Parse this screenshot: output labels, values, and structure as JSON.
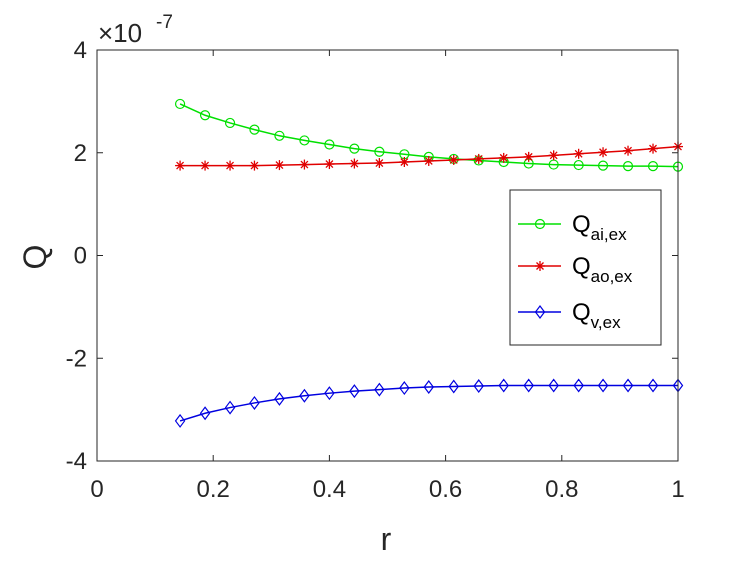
{
  "chart_data": {
    "type": "line",
    "xlabel": "r",
    "ylabel": "Q",
    "xlim": [
      0,
      1
    ],
    "ylim": [
      -4,
      4
    ],
    "y_scale_exponent": "-7",
    "y_scale_prefix": "×10",
    "xticks": [
      0,
      0.2,
      0.4,
      0.6,
      0.8,
      1
    ],
    "xtick_labels": [
      "0",
      "0.2",
      "0.4",
      "0.6",
      "0.8",
      "1"
    ],
    "yticks": [
      -4,
      -2,
      0,
      2,
      4
    ],
    "ytick_labels": [
      "-4",
      "-2",
      "0",
      "2",
      "4"
    ],
    "grid": false,
    "legend_position": "center-right",
    "x": [
      0.143,
      0.186,
      0.229,
      0.271,
      0.314,
      0.357,
      0.4,
      0.443,
      0.486,
      0.529,
      0.571,
      0.614,
      0.657,
      0.7,
      0.743,
      0.786,
      0.829,
      0.871,
      0.914,
      0.957,
      1.0
    ],
    "series": [
      {
        "name": "Q_ai,ex",
        "label_main": "Q",
        "label_sub": "ai,ex",
        "color": "#00e000",
        "marker": "circle",
        "values": [
          2.95,
          2.73,
          2.58,
          2.45,
          2.33,
          2.24,
          2.16,
          2.08,
          2.02,
          1.97,
          1.92,
          1.88,
          1.85,
          1.82,
          1.79,
          1.77,
          1.76,
          1.75,
          1.74,
          1.74,
          1.73
        ]
      },
      {
        "name": "Q_ao,ex",
        "label_main": "Q",
        "label_sub": "ao,ex",
        "color": "#e00000",
        "marker": "asterisk",
        "values": [
          1.75,
          1.75,
          1.75,
          1.75,
          1.76,
          1.77,
          1.78,
          1.79,
          1.8,
          1.82,
          1.84,
          1.86,
          1.88,
          1.9,
          1.92,
          1.95,
          1.98,
          2.01,
          2.04,
          2.08,
          2.12
        ]
      },
      {
        "name": "Q_v,ex",
        "label_main": "Q",
        "label_sub": "v,ex",
        "color": "#0000e0",
        "marker": "diamond",
        "values": [
          -3.22,
          -3.07,
          -2.96,
          -2.87,
          -2.79,
          -2.73,
          -2.68,
          -2.64,
          -2.61,
          -2.58,
          -2.56,
          -2.55,
          -2.54,
          -2.53,
          -2.53,
          -2.53,
          -2.53,
          -2.53,
          -2.53,
          -2.53,
          -2.53
        ]
      }
    ]
  }
}
